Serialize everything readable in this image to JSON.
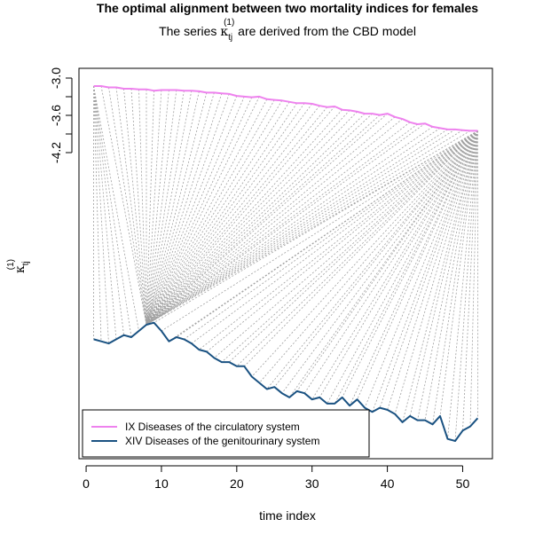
{
  "chart_data": {
    "type": "line",
    "title": "The optimal alignment between two mortality indices for females",
    "subtitle_prefix": "The series ",
    "subtitle_symbol": "κ",
    "subtitle_subscript": "tj",
    "subtitle_superscript": "(1)",
    "subtitle_suffix": " are derived from the CBD model",
    "xlabel": "time index",
    "ylabel_symbol": "κ",
    "ylabel_subscript": "tj",
    "ylabel_superscript": "(1)",
    "xlim": [
      -0.95,
      53.95
    ],
    "xticks": [
      0,
      10,
      20,
      30,
      40,
      50
    ],
    "yticks": [
      -3.0,
      -3.6,
      -4.2
    ],
    "ytick_labels": [
      "-3.0",
      "-3.6",
      "-4.2"
    ],
    "ytick_minor": [
      -3.3,
      -3.9
    ],
    "ylim_top": -2.89,
    "ylim_bottom": -4.59,
    "series": [
      {
        "name": "IX Diseases of the circulatory system",
        "color": "#EE82EE",
        "x": [
          1,
          2,
          3,
          4,
          5,
          6,
          7,
          8,
          9,
          10,
          11,
          12,
          13,
          14,
          15,
          16,
          17,
          18,
          19,
          20,
          21,
          22,
          23,
          24,
          25,
          26,
          27,
          28,
          29,
          30,
          31,
          32,
          33,
          34,
          35,
          36,
          37,
          38,
          39,
          40,
          41,
          42,
          43,
          44,
          45,
          46,
          47,
          48,
          49,
          50,
          51,
          52
        ],
        "values": [
          -3.16,
          -3.16,
          -3.18,
          -3.18,
          -3.2,
          -3.2,
          -3.21,
          -3.21,
          -3.23,
          -3.22,
          -3.22,
          -3.22,
          -3.23,
          -3.23,
          -3.24,
          -3.26,
          -3.26,
          -3.27,
          -3.28,
          -3.31,
          -3.32,
          -3.33,
          -3.32,
          -3.36,
          -3.37,
          -3.38,
          -3.4,
          -3.42,
          -3.42,
          -3.43,
          -3.46,
          -3.48,
          -3.47,
          -3.52,
          -3.53,
          -3.55,
          -3.58,
          -3.58,
          -3.6,
          -3.58,
          -3.63,
          -3.66,
          -3.71,
          -3.74,
          -3.73,
          -3.78,
          -3.8,
          -3.82,
          -3.82,
          -3.83,
          -3.84,
          -3.84
        ]
      },
      {
        "name": "XIV Diseases of the genitourinary system",
        "color": "#1A5282",
        "x": [
          1,
          2,
          3,
          4,
          5,
          6,
          7,
          8,
          9,
          10,
          11,
          12,
          13,
          14,
          15,
          16,
          17,
          18,
          19,
          20,
          21,
          22,
          23,
          24,
          25,
          26,
          27,
          28,
          29,
          30,
          31,
          32,
          33,
          34,
          35,
          36,
          37,
          38,
          39,
          40,
          41,
          42,
          43,
          44,
          45,
          46,
          47,
          48,
          49,
          50,
          51,
          52
        ],
        "values": [
          -4.32,
          -4.33,
          -4.34,
          -4.32,
          -4.3,
          -4.31,
          -4.28,
          -4.25,
          -4.24,
          -4.28,
          -4.33,
          -4.31,
          -4.32,
          -4.34,
          -4.37,
          -4.38,
          -4.41,
          -4.43,
          -4.43,
          -4.45,
          -4.45,
          -4.5,
          -4.53,
          -4.56,
          -4.55,
          -4.58,
          -4.6,
          -4.57,
          -4.58,
          -4.61,
          -4.6,
          -4.63,
          -4.63,
          -4.6,
          -4.64,
          -4.61,
          -4.65,
          -4.67,
          -4.65,
          -4.66,
          -4.68,
          -4.72,
          -4.69,
          -4.71,
          -4.71,
          -4.73,
          -4.69,
          -4.8,
          -4.81,
          -4.76,
          -4.74,
          -4.7
        ]
      }
    ],
    "alignment_pairs": [
      [
        1,
        1
      ],
      [
        1,
        2
      ],
      [
        1,
        3
      ],
      [
        1,
        4
      ],
      [
        1,
        5
      ],
      [
        1,
        6
      ],
      [
        1,
        7
      ],
      [
        2,
        8
      ],
      [
        3,
        8
      ],
      [
        4,
        8
      ],
      [
        5,
        8
      ],
      [
        6,
        8
      ],
      [
        7,
        8
      ],
      [
        8,
        8
      ],
      [
        9,
        8
      ],
      [
        10,
        8
      ],
      [
        11,
        8
      ],
      [
        12,
        8
      ],
      [
        13,
        8
      ],
      [
        14,
        8
      ],
      [
        15,
        8
      ],
      [
        16,
        8
      ],
      [
        17,
        8
      ],
      [
        18,
        8
      ],
      [
        19,
        8
      ],
      [
        20,
        8
      ],
      [
        21,
        8
      ],
      [
        22,
        8
      ],
      [
        23,
        8
      ],
      [
        24,
        8
      ],
      [
        25,
        8
      ],
      [
        26,
        8
      ],
      [
        27,
        8
      ],
      [
        28,
        8
      ],
      [
        29,
        8
      ],
      [
        30,
        8
      ],
      [
        31,
        8
      ],
      [
        32,
        8
      ],
      [
        33,
        8
      ],
      [
        34,
        8
      ],
      [
        35,
        8
      ],
      [
        36,
        8
      ],
      [
        37,
        8
      ],
      [
        38,
        8
      ],
      [
        39,
        8
      ],
      [
        40,
        8
      ],
      [
        41,
        8
      ],
      [
        42,
        8
      ],
      [
        43,
        8
      ],
      [
        44,
        8
      ],
      [
        45,
        8
      ],
      [
        46,
        8
      ],
      [
        47,
        8
      ],
      [
        48,
        8
      ],
      [
        49,
        8
      ],
      [
        50,
        8
      ],
      [
        51,
        8
      ],
      [
        52,
        8
      ],
      [
        52,
        9
      ],
      [
        52,
        10
      ],
      [
        52,
        11
      ],
      [
        52,
        12
      ],
      [
        52,
        13
      ],
      [
        52,
        14
      ],
      [
        52,
        15
      ],
      [
        52,
        16
      ],
      [
        52,
        17
      ],
      [
        52,
        18
      ],
      [
        52,
        19
      ],
      [
        52,
        20
      ],
      [
        52,
        21
      ],
      [
        52,
        22
      ],
      [
        52,
        23
      ],
      [
        52,
        24
      ],
      [
        52,
        25
      ],
      [
        52,
        26
      ],
      [
        52,
        27
      ],
      [
        52,
        28
      ],
      [
        52,
        29
      ],
      [
        52,
        30
      ],
      [
        52,
        31
      ],
      [
        52,
        32
      ],
      [
        52,
        33
      ],
      [
        52,
        34
      ],
      [
        52,
        35
      ],
      [
        52,
        36
      ],
      [
        52,
        37
      ],
      [
        52,
        38
      ],
      [
        52,
        39
      ],
      [
        52,
        40
      ],
      [
        52,
        41
      ],
      [
        52,
        42
      ],
      [
        52,
        43
      ],
      [
        52,
        44
      ],
      [
        52,
        45
      ],
      [
        52,
        46
      ],
      [
        52,
        47
      ],
      [
        52,
        48
      ],
      [
        52,
        49
      ],
      [
        52,
        50
      ],
      [
        52,
        51
      ],
      [
        52,
        52
      ]
    ],
    "alignment_color": "#A0A0A0",
    "legend_position": "bottom-left",
    "grid": false
  }
}
